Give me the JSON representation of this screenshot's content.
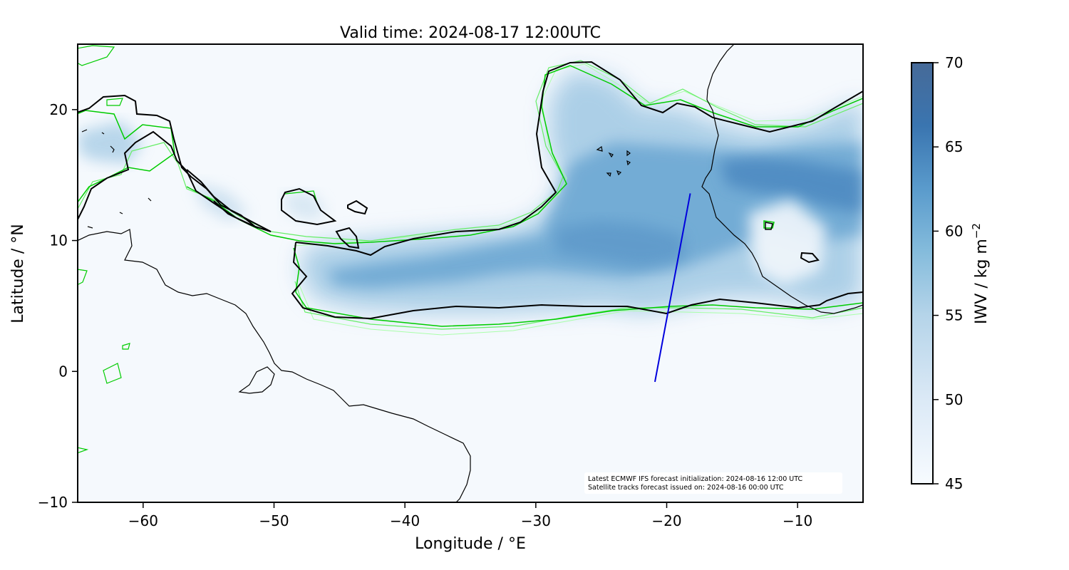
{
  "title": "Valid time: 2024-08-17 12:00UTC",
  "x_axis": {
    "label": "Longitude / °E",
    "range": [
      -65,
      -5
    ],
    "ticks": [
      -60,
      -50,
      -40,
      -30,
      -20,
      -10
    ],
    "tick_labels": [
      "−60",
      "−50",
      "−40",
      "−30",
      "−20",
      "−10"
    ]
  },
  "y_axis": {
    "label": "Latitude / °N",
    "range": [
      -10,
      25
    ],
    "ticks": [
      -10,
      0,
      10,
      20
    ],
    "tick_labels": [
      "−10",
      "0",
      "10",
      "20"
    ]
  },
  "colorbar": {
    "label_main": "IWV / kg m",
    "label_exp": "−2",
    "range": [
      45,
      70
    ],
    "ticks": [
      45,
      50,
      55,
      60,
      65,
      70
    ],
    "tick_labels": [
      "45",
      "50",
      "55",
      "60",
      "65",
      "70"
    ],
    "colors": [
      "#f7fbff",
      "#dbe9f6",
      "#b5d4e9",
      "#85bcdc",
      "#5a9bcc",
      "#3a75b0",
      "#466a98"
    ]
  },
  "annotation": {
    "line1": "Latest ECMWF IFS forecast initialization: 2024-08-16 12:00 UTC",
    "line2": "Satellite tracks forecast issued on: 2024-08-16 00:00 UTC"
  },
  "satellite_track": {
    "start": [
      -20.9,
      -0.8
    ],
    "end": [
      -18.2,
      13.6
    ],
    "color": "#0000dd"
  },
  "contour_colors": {
    "main": "#000000",
    "bright": "#00cc00",
    "light": "#66ee66",
    "pale": "#aaffaa"
  }
}
